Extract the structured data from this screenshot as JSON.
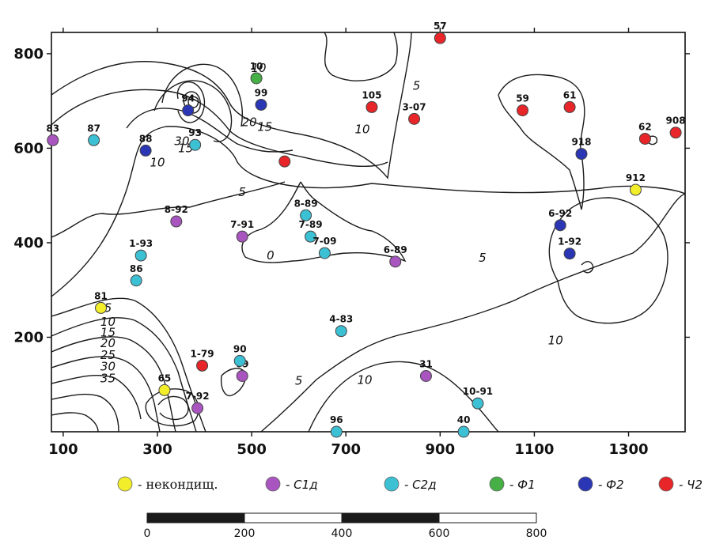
{
  "chart_data": {
    "type": "scatter",
    "title": "",
    "xlabel": "",
    "ylabel": "",
    "xlim": [
      75,
      1420
    ],
    "ylim": [
      0,
      845
    ],
    "grid": false,
    "x_ticks": [
      100,
      300,
      500,
      700,
      900,
      1100,
      1300
    ],
    "y_ticks": [
      200,
      400,
      600,
      800
    ],
    "legend_placement": "bottom",
    "legend": [
      {
        "label": "- некондищ.",
        "color": "#f2ee2a"
      },
      {
        "label": "- С1д",
        "color": "#a855c0"
      },
      {
        "label": "- С2д",
        "color": "#3cc0d4"
      },
      {
        "label": "- Ф1",
        "color": "#46b046"
      },
      {
        "label": "- Ф2",
        "color": "#2a36b4"
      },
      {
        "label": "- Ч2",
        "color": "#e8262a"
      }
    ],
    "series": [
      {
        "key": "nekond",
        "color": "#f2ee2a",
        "points": [
          {
            "label": "81",
            "x": 180,
            "y": 262
          },
          {
            "label": "65",
            "x": 315,
            "y": 88
          },
          {
            "label": "912",
            "x": 1315,
            "y": 512
          }
        ]
      },
      {
        "key": "c1d",
        "color": "#a855c0",
        "points": [
          {
            "label": "83",
            "x": 78,
            "y": 617
          },
          {
            "label": "8-92",
            "x": 340,
            "y": 445
          },
          {
            "label": "7-91",
            "x": 480,
            "y": 413
          },
          {
            "label": "6-89",
            "x": 805,
            "y": 360
          },
          {
            "label": "69",
            "x": 480,
            "y": 118
          },
          {
            "label": "7-92",
            "x": 385,
            "y": 50
          },
          {
            "label": "31",
            "x": 870,
            "y": 118
          }
        ]
      },
      {
        "key": "c2d",
        "color": "#3cc0d4",
        "points": [
          {
            "label": "87",
            "x": 165,
            "y": 617
          },
          {
            "label": "93",
            "x": 380,
            "y": 607
          },
          {
            "label": "8-89",
            "x": 615,
            "y": 458
          },
          {
            "label": "7-89",
            "x": 625,
            "y": 413
          },
          {
            "label": "7-09",
            "x": 655,
            "y": 378
          },
          {
            "label": "1-93",
            "x": 265,
            "y": 373
          },
          {
            "label": "86",
            "x": 255,
            "y": 320
          },
          {
            "label": "4-83",
            "x": 690,
            "y": 213
          },
          {
            "label": "90",
            "x": 475,
            "y": 150
          },
          {
            "label": "10-91",
            "x": 980,
            "y": 60
          },
          {
            "label": "96",
            "x": 680,
            "y": 0
          },
          {
            "label": "40",
            "x": 950,
            "y": 0
          }
        ]
      },
      {
        "key": "f1",
        "color": "#46b046",
        "points": [
          {
            "label": "10",
            "x": 510,
            "y": 748
          }
        ]
      },
      {
        "key": "f2",
        "color": "#2a36b4",
        "points": [
          {
            "label": "94",
            "x": 365,
            "y": 680
          },
          {
            "label": "99",
            "x": 520,
            "y": 692
          },
          {
            "label": "88",
            "x": 275,
            "y": 595
          },
          {
            "label": "918",
            "x": 1200,
            "y": 588
          },
          {
            "label": "6-92",
            "x": 1155,
            "y": 437
          },
          {
            "label": "1-92",
            "x": 1175,
            "y": 377
          }
        ]
      },
      {
        "key": "ch2",
        "color": "#e8262a",
        "points": [
          {
            "label": "57",
            "x": 900,
            "y": 833
          },
          {
            "label": "105",
            "x": 755,
            "y": 687
          },
          {
            "label": "3-07",
            "x": 845,
            "y": 662
          },
          {
            "label": "59",
            "x": 1075,
            "y": 680
          },
          {
            "label": "61",
            "x": 1175,
            "y": 687
          },
          {
            "label": "62",
            "x": 1335,
            "y": 620
          },
          {
            "label": "908",
            "x": 1400,
            "y": 633
          },
          {
            "label": "",
            "x": 570,
            "y": 572
          },
          {
            "label": "1-79",
            "x": 395,
            "y": 140
          }
        ]
      }
    ],
    "contour_labels": [
      {
        "text": "10",
        "x": 515,
        "y": 770
      },
      {
        "text": "20",
        "x": 495,
        "y": 655
      },
      {
        "text": "15",
        "x": 528,
        "y": 645
      },
      {
        "text": "30",
        "x": 352,
        "y": 615
      },
      {
        "text": "15",
        "x": 360,
        "y": 600
      },
      {
        "text": "10",
        "x": 300,
        "y": 570
      },
      {
        "text": "5",
        "x": 480,
        "y": 507
      },
      {
        "text": "10",
        "x": 735,
        "y": 640
      },
      {
        "text": "5",
        "x": 850,
        "y": 732
      },
      {
        "text": "0",
        "x": 540,
        "y": 373
      },
      {
        "text": "5",
        "x": 990,
        "y": 368
      },
      {
        "text": "10",
        "x": 1145,
        "y": 193
      },
      {
        "text": "5",
        "x": 195,
        "y": 262
      },
      {
        "text": "10",
        "x": 195,
        "y": 233
      },
      {
        "text": "15",
        "x": 195,
        "y": 210
      },
      {
        "text": "20",
        "x": 195,
        "y": 187
      },
      {
        "text": "25",
        "x": 195,
        "y": 162
      },
      {
        "text": "30",
        "x": 195,
        "y": 138
      },
      {
        "text": "35",
        "x": 195,
        "y": 113
      },
      {
        "text": "5",
        "x": 600,
        "y": 108
      },
      {
        "text": "10",
        "x": 740,
        "y": 110
      }
    ]
  },
  "scale_bar": {
    "labels": [
      "0",
      "200",
      "400",
      "600",
      "800"
    ]
  }
}
